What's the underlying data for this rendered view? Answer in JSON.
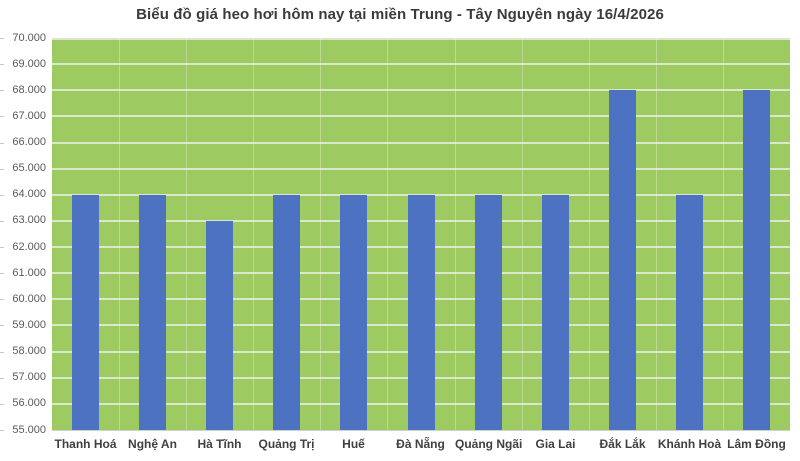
{
  "chart_data": {
    "type": "bar",
    "title": "Biểu đồ giá heo hơi hôm nay tại miền Trung - Tây Nguyên ngày 16/4/2026",
    "categories": [
      "Thanh Hoá",
      "Nghệ An",
      "Hà Tĩnh",
      "Quảng Trị",
      "Huế",
      "Đà Nẵng",
      "Quảng Ngãi",
      "Gia Lai",
      "Đắk Lắk",
      "Khánh Hoà",
      "Lâm Đồng"
    ],
    "values": [
      64000,
      64000,
      63000,
      64000,
      64000,
      64000,
      64000,
      64000,
      68000,
      64000,
      68000
    ],
    "xlabel": "",
    "ylabel": "",
    "ylim": [
      55000,
      70000
    ],
    "ytick_step": 1000,
    "ytick_labels": [
      "70.000",
      "69.000",
      "68.000",
      "67.000",
      "66.000",
      "65.000",
      "64.000",
      "63.000",
      "62.000",
      "61.000",
      "60.000",
      "59.000",
      "58.000",
      "57.000",
      "56.000",
      "55.000"
    ],
    "grid": true,
    "legend": "none",
    "colors": {
      "bar": "#4d72c1",
      "plot_background": "#9dcb61",
      "gridline": "#dbe7ca",
      "axis_line": "#d0cece",
      "title_text": "#3b3b3b",
      "ytick_text": "#595959",
      "xtick_text": "#404040",
      "tick_mark": "#c6c6c6",
      "page_background": "#ffffff"
    }
  }
}
